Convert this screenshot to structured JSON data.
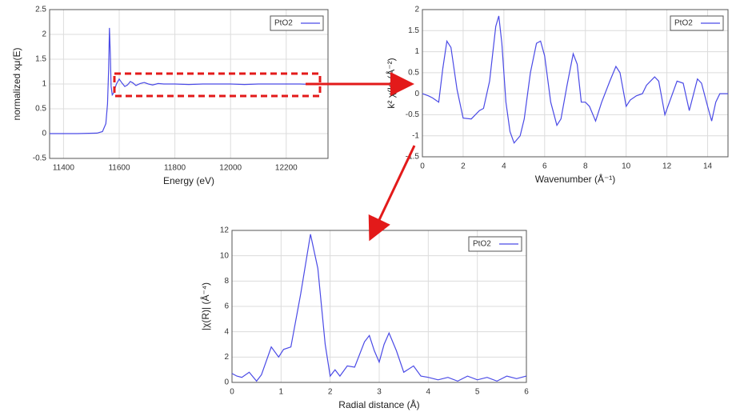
{
  "chart_data": [
    {
      "type": "line",
      "xlabel": "Energy   (eV)",
      "ylabel": "normalized xμ(E)",
      "x": [
        11350,
        11450,
        11520,
        11540,
        11552,
        11558,
        11562,
        11565,
        11568,
        11571,
        11575,
        11580,
        11590,
        11600,
        11610,
        11620,
        11630,
        11640,
        11650,
        11660,
        11675,
        11690,
        11705,
        11720,
        11740,
        11760,
        11800,
        11850,
        11900,
        11950,
        12000,
        12050,
        12100,
        12150,
        12200,
        12250,
        12300,
        12350
      ],
      "series": [
        {
          "name": "PtO2",
          "color": "#4a4ae6",
          "values": [
            0,
            0,
            0.01,
            0.04,
            0.2,
            0.6,
            1.3,
            2.13,
            1.6,
            0.95,
            0.78,
            0.82,
            1.0,
            1.1,
            1.02,
            0.95,
            0.98,
            1.05,
            1.02,
            0.97,
            1.01,
            1.03,
            1.0,
            0.98,
            1.01,
            1.0,
            1.0,
            0.99,
            1.0,
            1.0,
            1.0,
            0.99,
            1.0,
            1.0,
            1.0,
            1.0,
            0.99,
            1.0
          ]
        }
      ],
      "xlim": [
        11350,
        12350
      ],
      "xticks": [
        11400,
        11600,
        11800,
        12000,
        12200
      ],
      "ylim": [
        -0.5,
        2.5
      ],
      "yticks": [
        -0.5,
        0,
        0.5,
        1,
        1.5,
        2,
        2.5
      ],
      "grid": true
    },
    {
      "type": "line",
      "xlabel": "Wavenumber   (Å⁻¹)",
      "ylabel": "k² χ(k)   (Å⁻²)",
      "x": [
        0,
        0.3,
        0.5,
        0.8,
        1.0,
        1.2,
        1.4,
        1.7,
        2.0,
        2.4,
        2.8,
        3.0,
        3.3,
        3.6,
        3.75,
        3.9,
        4.1,
        4.3,
        4.5,
        4.8,
        5.0,
        5.3,
        5.6,
        5.8,
        6.0,
        6.3,
        6.6,
        6.8,
        7.1,
        7.4,
        7.6,
        7.8,
        8.0,
        8.2,
        8.5,
        8.8,
        9.2,
        9.5,
        9.7,
        10.0,
        10.2,
        10.5,
        10.8,
        11.0,
        11.4,
        11.6,
        11.9,
        12.2,
        12.5,
        12.8,
        13.1,
        13.5,
        13.7,
        14.0,
        14.2,
        14.4,
        14.6,
        15
      ],
      "series": [
        {
          "name": "PtO2",
          "color": "#4a4ae6",
          "values": [
            0,
            -0.05,
            -0.1,
            -0.2,
            0.6,
            1.25,
            1.1,
            0.1,
            -0.58,
            -0.6,
            -0.4,
            -0.35,
            0.3,
            1.6,
            1.85,
            1.2,
            -0.2,
            -0.9,
            -1.17,
            -1.0,
            -0.6,
            0.5,
            1.2,
            1.25,
            0.9,
            -0.2,
            -0.75,
            -0.6,
            0.2,
            0.95,
            0.7,
            -0.2,
            -0.2,
            -0.3,
            -0.65,
            -0.2,
            0.3,
            0.65,
            0.5,
            -0.3,
            -0.15,
            -0.05,
            0,
            0.2,
            0.4,
            0.3,
            -0.5,
            -0.1,
            0.3,
            0.25,
            -0.4,
            0.35,
            0.25,
            -0.3,
            -0.65,
            -0.2,
            0,
            0
          ]
        }
      ],
      "xlim": [
        0,
        15
      ],
      "xticks": [
        0,
        2,
        4,
        6,
        8,
        10,
        12,
        14
      ],
      "ylim": [
        -1.5,
        2
      ],
      "yticks": [
        -1.5,
        -1,
        -0.5,
        0,
        0.5,
        1,
        1.5,
        2
      ],
      "grid": true
    },
    {
      "type": "line",
      "xlabel": "Radial distance   (Å)",
      "ylabel": "|χ(R)|   (Å⁻⁴)",
      "x": [
        0,
        0.1,
        0.2,
        0.35,
        0.5,
        0.6,
        0.8,
        0.95,
        1.05,
        1.2,
        1.4,
        1.6,
        1.75,
        1.9,
        2.0,
        2.1,
        2.2,
        2.35,
        2.5,
        2.7,
        2.8,
        2.9,
        3.0,
        3.1,
        3.2,
        3.35,
        3.5,
        3.7,
        3.85,
        4.0,
        4.2,
        4.4,
        4.6,
        4.8,
        5.0,
        5.2,
        5.4,
        5.6,
        5.8,
        6.0
      ],
      "series": [
        {
          "name": "PtO2",
          "color": "#4a4ae6",
          "values": [
            0.7,
            0.5,
            0.4,
            0.8,
            0.1,
            0.6,
            2.8,
            2.0,
            2.6,
            2.8,
            7,
            11.7,
            9,
            3,
            0.5,
            1.0,
            0.5,
            1.3,
            1.2,
            3.2,
            3.7,
            2.5,
            1.6,
            3.0,
            3.9,
            2.5,
            0.8,
            1.3,
            0.5,
            0.4,
            0.2,
            0.4,
            0.1,
            0.5,
            0.2,
            0.4,
            0.1,
            0.5,
            0.3,
            0.5
          ]
        }
      ],
      "xlim": [
        0,
        6
      ],
      "xticks": [
        0,
        1,
        2,
        3,
        4,
        5,
        6
      ],
      "ylim": [
        0,
        12
      ],
      "yticks": [
        0,
        2,
        4,
        6,
        8,
        10,
        12
      ],
      "grid": true
    }
  ]
}
